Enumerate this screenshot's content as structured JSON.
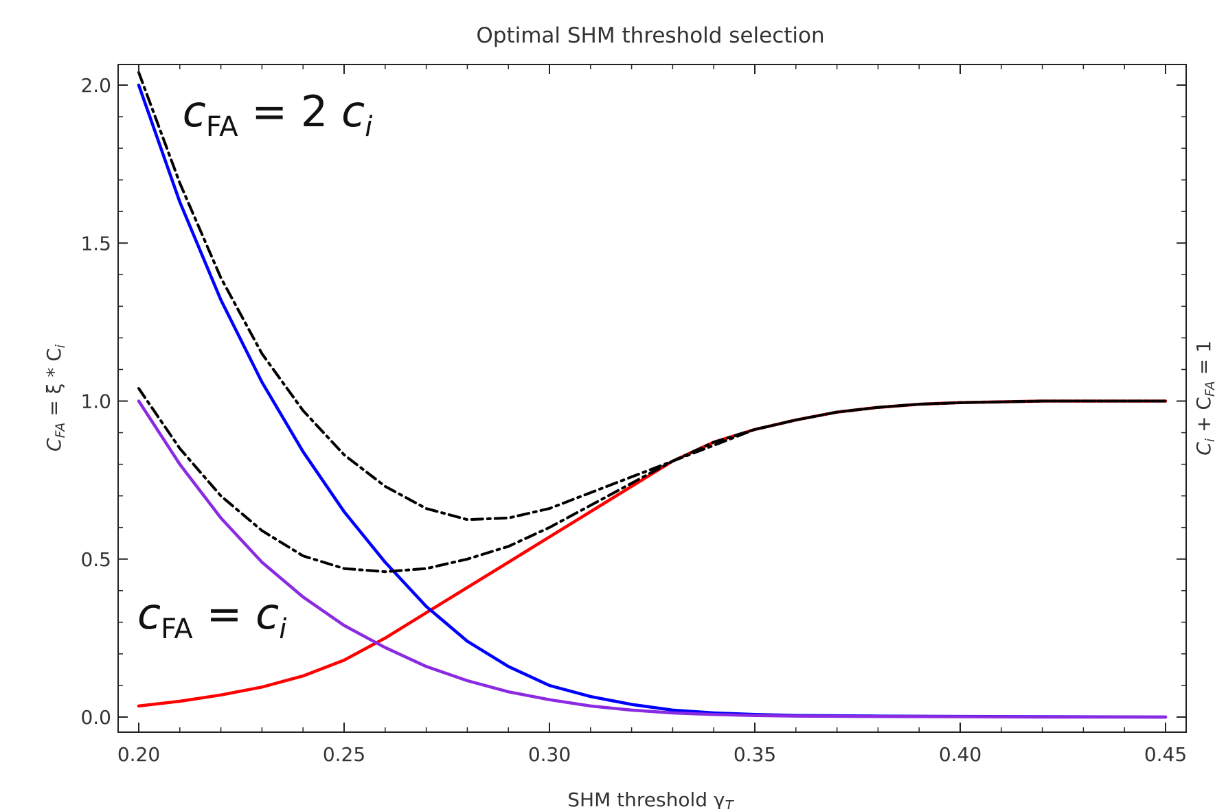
{
  "chart_data": {
    "type": "line",
    "title": "Optimal SHM threshold selection",
    "xlabel": "SHM threshold γ",
    "xlabel_subscript": "T",
    "ylabel_left": "C",
    "ylabel_left_sub": "FA",
    "ylabel_left_rest": " = ξ * C",
    "ylabel_left_sub2": "i",
    "ylabel_right": "C",
    "ylabel_right_sub": "i",
    "ylabel_right_rest": " + C",
    "ylabel_right_sub2": "FA",
    "ylabel_right_tail": " = 1",
    "xlim": [
      0.2,
      0.45
    ],
    "ylim": [
      0.0,
      2.0
    ],
    "xticks": [
      0.2,
      0.25,
      0.3,
      0.35,
      0.4,
      0.45
    ],
    "xtick_labels": [
      "0.20",
      "0.25",
      "0.30",
      "0.35",
      "0.40",
      "0.45"
    ],
    "yticks": [
      0.0,
      0.5,
      1.0,
      1.5,
      2.0
    ],
    "ytick_labels": [
      "0.0",
      "0.5",
      "1.0",
      "1.5",
      "2.0"
    ],
    "annotations": [
      {
        "main": "c",
        "sub": "FA",
        "rest": " = 2 c",
        "sub2": "i",
        "x": 0.211,
        "y": 1.87
      },
      {
        "main": "c",
        "sub": "FA",
        "rest": " = c",
        "sub2": "i",
        "x": 0.2,
        "y": 0.28
      }
    ],
    "series": [
      {
        "color": "#ff0000",
        "style": "solid",
        "x": [
          0.2,
          0.21,
          0.22,
          0.23,
          0.24,
          0.25,
          0.26,
          0.27,
          0.28,
          0.29,
          0.3,
          0.31,
          0.32,
          0.33,
          0.34,
          0.35,
          0.36,
          0.37,
          0.38,
          0.39,
          0.4,
          0.42,
          0.45
        ],
        "y": [
          0.035,
          0.05,
          0.07,
          0.095,
          0.13,
          0.18,
          0.25,
          0.33,
          0.41,
          0.49,
          0.57,
          0.65,
          0.73,
          0.81,
          0.87,
          0.91,
          0.94,
          0.965,
          0.98,
          0.99,
          0.995,
          1.0,
          1.0
        ]
      },
      {
        "color": "#0000ff",
        "style": "solid",
        "x": [
          0.2,
          0.21,
          0.22,
          0.23,
          0.24,
          0.25,
          0.26,
          0.27,
          0.28,
          0.29,
          0.3,
          0.31,
          0.32,
          0.33,
          0.34,
          0.35,
          0.36,
          0.38,
          0.4,
          0.42,
          0.45
        ],
        "y": [
          2.0,
          1.63,
          1.32,
          1.06,
          0.84,
          0.65,
          0.49,
          0.35,
          0.24,
          0.16,
          0.1,
          0.065,
          0.04,
          0.022,
          0.013,
          0.008,
          0.005,
          0.003,
          0.002,
          0.001,
          0.0
        ]
      },
      {
        "color": "#8a2be2",
        "style": "solid",
        "x": [
          0.2,
          0.21,
          0.22,
          0.23,
          0.24,
          0.25,
          0.26,
          0.27,
          0.28,
          0.29,
          0.3,
          0.31,
          0.32,
          0.33,
          0.34,
          0.35,
          0.36,
          0.38,
          0.4,
          0.42,
          0.45
        ],
        "y": [
          1.0,
          0.8,
          0.63,
          0.49,
          0.38,
          0.29,
          0.22,
          0.16,
          0.115,
          0.08,
          0.055,
          0.035,
          0.022,
          0.013,
          0.008,
          0.005,
          0.003,
          0.002,
          0.001,
          0.0,
          0.0
        ]
      },
      {
        "color": "#000000",
        "style": "dashdot",
        "x": [
          0.2,
          0.21,
          0.22,
          0.23,
          0.24,
          0.25,
          0.26,
          0.27,
          0.28,
          0.29,
          0.3,
          0.31,
          0.32,
          0.33,
          0.34,
          0.35,
          0.36,
          0.37,
          0.38,
          0.39,
          0.4,
          0.42,
          0.45
        ],
        "y": [
          2.04,
          1.69,
          1.39,
          1.15,
          0.97,
          0.83,
          0.73,
          0.66,
          0.625,
          0.63,
          0.66,
          0.71,
          0.76,
          0.81,
          0.86,
          0.91,
          0.94,
          0.965,
          0.98,
          0.99,
          0.995,
          1.0,
          1.0
        ]
      },
      {
        "color": "#000000",
        "style": "dashdot",
        "x": [
          0.2,
          0.21,
          0.22,
          0.23,
          0.24,
          0.25,
          0.26,
          0.27,
          0.28,
          0.29,
          0.3,
          0.31,
          0.32,
          0.33,
          0.34,
          0.35,
          0.36,
          0.37,
          0.38,
          0.39,
          0.4,
          0.42,
          0.45
        ],
        "y": [
          1.04,
          0.85,
          0.7,
          0.59,
          0.51,
          0.47,
          0.46,
          0.47,
          0.5,
          0.54,
          0.6,
          0.67,
          0.74,
          0.81,
          0.87,
          0.91,
          0.94,
          0.965,
          0.98,
          0.99,
          0.995,
          1.0,
          1.0
        ]
      }
    ]
  }
}
